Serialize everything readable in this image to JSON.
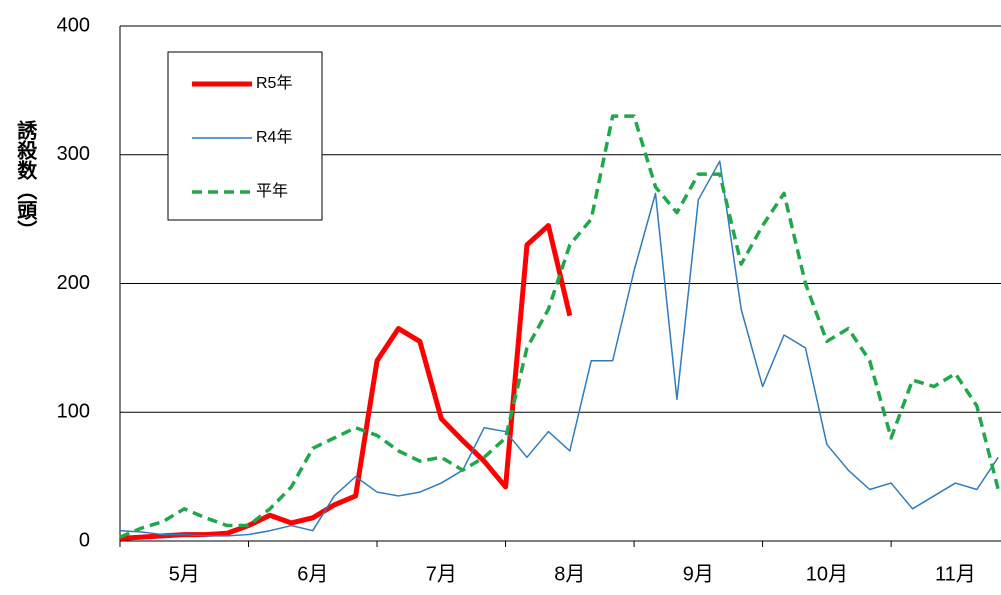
{
  "chart_data": {
    "type": "line",
    "y_axis_label": "誘殺数（頭）",
    "categories": [
      null,
      null,
      null,
      "5月",
      null,
      null,
      null,
      null,
      null,
      "6月",
      null,
      null,
      null,
      null,
      null,
      "7月",
      null,
      null,
      null,
      null,
      null,
      "8月",
      null,
      null,
      null,
      null,
      null,
      "9月",
      null,
      null,
      null,
      null,
      null,
      "10月",
      null,
      null,
      null,
      null,
      null,
      "11月",
      null,
      null
    ],
    "series": [
      {
        "name": "R5年",
        "color": "#ff0000",
        "width": 5,
        "dash": false,
        "values": [
          2,
          3,
          4,
          5,
          5,
          6,
          12,
          20,
          14,
          18,
          28,
          35,
          140,
          165,
          155,
          95,
          78,
          62,
          42,
          230,
          245,
          175,
          null,
          null,
          null,
          null,
          null,
          null,
          null,
          null,
          null,
          null,
          null,
          null,
          null,
          null,
          null,
          null,
          null,
          null,
          null,
          null
        ]
      },
      {
        "name": "R4年",
        "color": "#2e7bbf",
        "width": 1.5,
        "dash": false,
        "values": [
          8,
          7,
          5,
          5,
          4,
          4,
          5,
          8,
          12,
          8,
          35,
          50,
          38,
          35,
          38,
          45,
          55,
          88,
          85,
          65,
          85,
          70,
          140,
          140,
          210,
          270,
          110,
          265,
          295,
          180,
          120,
          160,
          150,
          75,
          55,
          40,
          45,
          25,
          35,
          45,
          40,
          65
        ]
      },
      {
        "name": "平年",
        "color": "#1fa84a",
        "width": 3.5,
        "dash": true,
        "values": [
          3,
          10,
          15,
          25,
          18,
          12,
          12,
          25,
          42,
          72,
          80,
          88,
          82,
          70,
          62,
          65,
          55,
          65,
          80,
          150,
          180,
          230,
          250,
          330,
          330,
          275,
          255,
          285,
          285,
          215,
          245,
          270,
          200,
          155,
          165,
          140,
          80,
          125,
          120,
          130,
          105,
          40
        ]
      }
    ],
    "ylim": [
      0,
      400
    ],
    "yticks": [
      0,
      100,
      200,
      300,
      400
    ],
    "grid": true
  }
}
